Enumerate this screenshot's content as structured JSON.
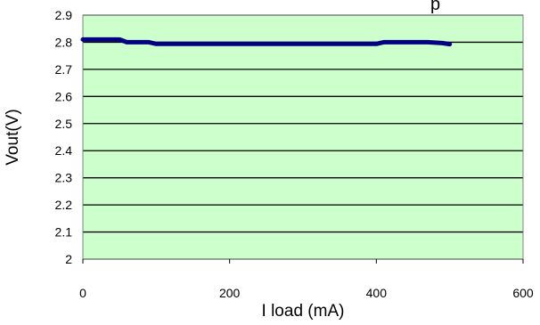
{
  "header": {
    "title_fragment": "p"
  },
  "chart_data": {
    "type": "line",
    "title": "",
    "xlabel": "I load (mA)",
    "ylabel": "Vout(V)",
    "xlim": [
      0,
      600
    ],
    "ylim": [
      2,
      2.9
    ],
    "x_ticks": [
      0,
      200,
      400,
      600
    ],
    "x_tick_labels": [
      "0",
      "200",
      "400",
      "600"
    ],
    "y_ticks": [
      2,
      2.1,
      2.2,
      2.3,
      2.4,
      2.5,
      2.6,
      2.7,
      2.8,
      2.9
    ],
    "y_tick_labels": [
      "2",
      "2.1",
      "2.2",
      "2.3",
      "2.4",
      "2.5",
      "2.6",
      "2.7",
      "2.8",
      "2.9"
    ],
    "grid": {
      "horizontal": true,
      "vertical": false
    },
    "legend": "none",
    "colors": {
      "plot_background": "#ccffcc",
      "line": "#000080",
      "grid": "#000000",
      "border": "#808080"
    },
    "series": [
      {
        "x": [
          0,
          20,
          50,
          60,
          90,
          100,
          150,
          200,
          250,
          300,
          350,
          400,
          410,
          440,
          470,
          490,
          500
        ],
        "y": [
          2.81,
          2.81,
          2.81,
          2.8,
          2.8,
          2.794,
          2.794,
          2.794,
          2.794,
          2.794,
          2.794,
          2.794,
          2.8,
          2.8,
          2.8,
          2.797,
          2.793
        ]
      }
    ]
  }
}
